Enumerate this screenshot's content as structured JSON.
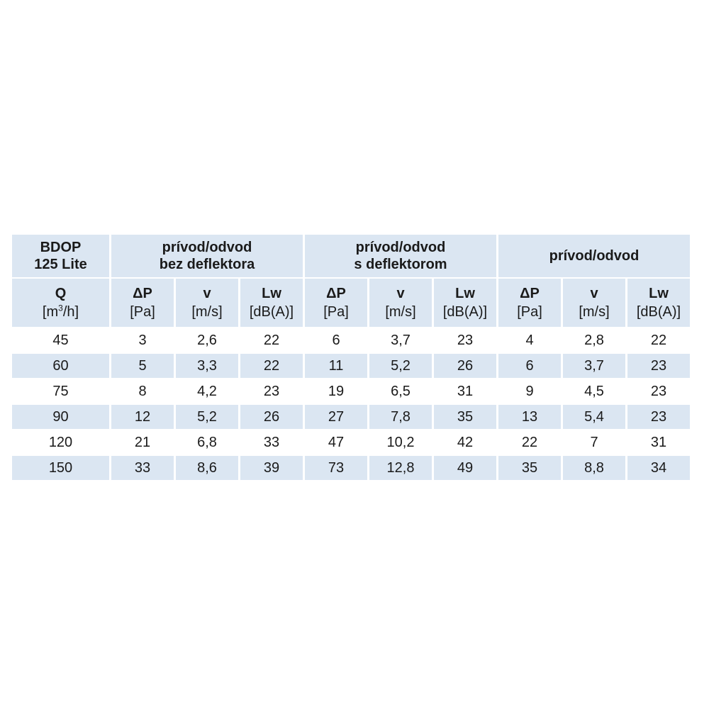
{
  "header": {
    "model_line1": "BDOP",
    "model_line2": "125 Lite",
    "groups": [
      {
        "line1": "prívod/odvod",
        "line2": "bez deflektora"
      },
      {
        "line1": "prívod/odvod",
        "line2": "s deflektorom"
      },
      {
        "line1": "prívod/odvod",
        "line2": ""
      }
    ]
  },
  "units": {
    "q_symbol": "Q",
    "q_unit_pre": "[m",
    "q_unit_sup": "3",
    "q_unit_post": "/h]",
    "groups": [
      [
        {
          "symbol": "ΔP",
          "unit": "[Pa]"
        },
        {
          "symbol": "v",
          "unit": "[m/s]"
        },
        {
          "symbol": "Lw",
          "unit": "[dB(A)]"
        }
      ],
      [
        {
          "symbol": "ΔP",
          "unit": "[Pa]"
        },
        {
          "symbol": "v",
          "unit": "[m/s]"
        },
        {
          "symbol": "Lw",
          "unit": "[dB(A)]"
        }
      ],
      [
        {
          "symbol": "ΔP",
          "unit": "[Pa]"
        },
        {
          "symbol": "v",
          "unit": "[m/s]"
        },
        {
          "symbol": "Lw",
          "unit": "[dB(A)]"
        }
      ]
    ]
  },
  "rows": [
    [
      "45",
      "3",
      "2,6",
      "22",
      "6",
      "3,7",
      "23",
      "4",
      "2,8",
      "22"
    ],
    [
      "60",
      "5",
      "3,3",
      "22",
      "11",
      "5,2",
      "26",
      "6",
      "3,7",
      "23"
    ],
    [
      "75",
      "8",
      "4,2",
      "23",
      "19",
      "6,5",
      "31",
      "9",
      "4,5",
      "23"
    ],
    [
      "90",
      "12",
      "5,2",
      "26",
      "27",
      "7,8",
      "35",
      "13",
      "5,4",
      "23"
    ],
    [
      "120",
      "21",
      "6,8",
      "33",
      "47",
      "10,2",
      "42",
      "22",
      "7",
      "31"
    ],
    [
      "150",
      "33",
      "8,6",
      "39",
      "73",
      "12,8",
      "49",
      "35",
      "8,8",
      "34"
    ]
  ],
  "colors": {
    "header_fill": "#dbe6f2",
    "stripe_fill": "#dbe6f2",
    "text": "#1a1a1a"
  }
}
